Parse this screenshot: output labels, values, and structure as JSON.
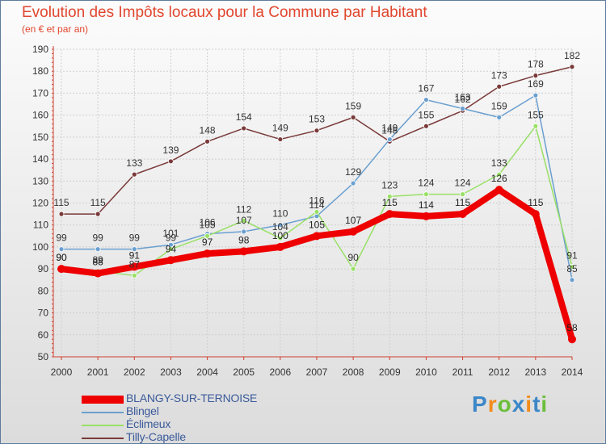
{
  "chart_data": {
    "type": "line",
    "title": "Evolution des Impôts locaux pour la Commune par Habitant",
    "subtitle": "(en € et par an)",
    "xlabel": "",
    "ylabel": "",
    "ylim": [
      50,
      190
    ],
    "yticks": [
      50,
      60,
      70,
      80,
      90,
      100,
      110,
      120,
      130,
      140,
      150,
      160,
      170,
      180,
      190
    ],
    "x": [
      "2000",
      "2001",
      "2002",
      "2003",
      "2004",
      "2005",
      "2006",
      "2007",
      "2008",
      "2009",
      "2010",
      "2011",
      "2012",
      "2013",
      "2014"
    ],
    "grid": true,
    "legend_position": "bottom-left",
    "series": [
      {
        "name": "BLANGY-SUR-TERNOISE",
        "color": "#ee0000",
        "values": [
          90,
          88,
          91,
          94,
          97,
          98,
          100,
          105,
          107,
          115,
          114,
          115,
          126,
          115,
          58
        ]
      },
      {
        "name": "Blingel",
        "color": "#6a9fd0",
        "values": [
          99,
          99,
          99,
          101,
          106,
          107,
          110,
          114,
          129,
          149,
          167,
          163,
          159,
          169,
          85
        ]
      },
      {
        "name": "Éclimeux",
        "color": "#99e066",
        "values": [
          90,
          89,
          87,
          99,
          105,
          112,
          104,
          116,
          90,
          123,
          124,
          124,
          133,
          155,
          91
        ]
      },
      {
        "name": "Tilly-Capelle",
        "color": "#7a3a3a",
        "values": [
          115,
          115,
          133,
          139,
          148,
          154,
          149,
          153,
          159,
          148,
          155,
          162,
          173,
          178,
          182
        ]
      }
    ]
  },
  "brand": {
    "name": "Proxiti",
    "letters": [
      "P",
      "r",
      "o",
      "x",
      "i",
      "t",
      "i"
    ],
    "colors": [
      "#3b87c8",
      "#f28c1c",
      "#6bbf3a",
      "#3b87c8",
      "#f28c1c",
      "#3b87c8",
      "#6bbf3a"
    ]
  }
}
